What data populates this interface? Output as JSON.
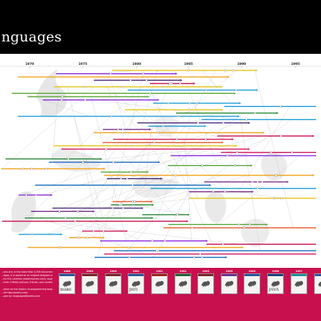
{
  "header": {
    "title": "nguages"
  },
  "timeline": {
    "years": [
      "1970",
      "1975",
      "1980",
      "1985",
      "1990",
      "1995"
    ],
    "line_colors": [
      "#7b2d8e",
      "#e6c619",
      "#1e9fd8",
      "#e85a2c",
      "#2e8b3a",
      "#c8104f",
      "#8a2be2",
      "#f2a31b",
      "#1b6fc2",
      "#4b2b7f",
      "#d81b60",
      "#5aa83b"
    ]
  },
  "footer": {
    "text_lines": [
      "...ons are, in the more than 2,500 documented",
      "...ages, it is based on an original diagram created",
      "...by Eric Levenez (www.levenez.com), augmented with suggestions",
      "...from O'Reilly authors, friends, and conference attendees.",
      "",
      "...ation on the history of programming languages,",
      "...ed http://oreilly.com/",
      "...ged by: languages@oreilly.com"
    ],
    "books": [
      {
        "year": "1986",
        "label": "make",
        "band": "#2a4f9b",
        "animal": "goat-icon"
      },
      {
        "year": "1990",
        "label": "",
        "band": "#7a1f1f",
        "animal": "animal-icon"
      },
      {
        "year": "1990",
        "label": "",
        "band": "#7a1f1f",
        "animal": "animal-icon"
      },
      {
        "year": "1991",
        "label": "perl",
        "band": "#2a4f9b",
        "animal": "camel-icon"
      },
      {
        "year": "1991",
        "label": "",
        "band": "#a01b1b",
        "animal": "animal-icon"
      },
      {
        "year": "1992",
        "label": "",
        "band": "#1f5f2a",
        "animal": "animal-icon"
      },
      {
        "year": "1993",
        "label": "",
        "band": "#7a1f1f",
        "animal": "animal-icon"
      },
      {
        "year": "1995",
        "label": "",
        "band": "#6b2a8e",
        "animal": "animal-icon"
      },
      {
        "year": "1995",
        "label": "",
        "band": "#2a4f9b",
        "animal": "animal-icon"
      },
      {
        "year": "1996",
        "label": "JAVA",
        "band": "#1a3c7a",
        "animal": "tiger-icon"
      },
      {
        "year": "1997",
        "label": "",
        "band": "#1f8f9a",
        "animal": "animal-icon"
      },
      {
        "year": "",
        "label": "",
        "band": "#2a4f9b",
        "animal": "animal-icon"
      }
    ]
  }
}
